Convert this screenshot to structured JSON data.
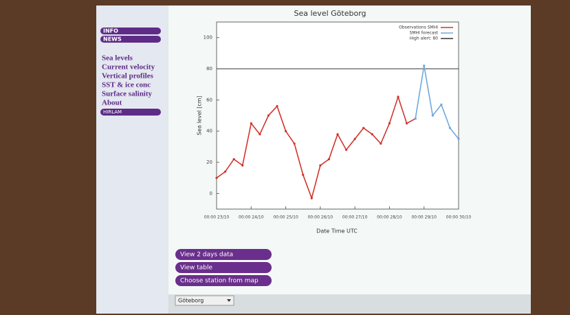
{
  "menu": {
    "small_top": [
      "INFO",
      "NEWS"
    ],
    "items": [
      "Sea levels",
      "Current velocity",
      "Vertical profiles",
      "SST & ice conc",
      "Surface salinity",
      "About"
    ],
    "small_bottom": [
      "HIRLAM"
    ]
  },
  "chart_data": {
    "type": "line",
    "title": "Sea level Göteborg",
    "x_label": "Date Time UTC",
    "y_label": "Sea level [cm]",
    "x": [
      "00:00 23/10",
      null,
      null,
      null,
      "00:00 24/10",
      null,
      null,
      null,
      "00:00 25/10",
      null,
      null,
      null,
      "00:00 26/10",
      null,
      null,
      null,
      "00:00 27/10",
      null,
      null,
      null,
      "00:00 28/10",
      null,
      null,
      null,
      "00:00 29/10",
      null,
      null,
      null,
      "00:00 30/10"
    ],
    "series": [
      {
        "name": "Observations SMHI",
        "color": "#d0342c",
        "values": [
          10,
          14,
          22,
          18,
          45,
          38,
          50,
          56,
          40,
          32,
          12,
          -3,
          18,
          22,
          38,
          28,
          35,
          42,
          38,
          32,
          45,
          62,
          45,
          48,
          null,
          null,
          null,
          null,
          null
        ]
      },
      {
        "name": "SMHI forecast",
        "color": "#6fa8dc",
        "values": [
          null,
          null,
          null,
          null,
          null,
          null,
          null,
          null,
          null,
          null,
          null,
          null,
          null,
          null,
          null,
          null,
          null,
          null,
          null,
          null,
          null,
          null,
          null,
          48,
          82,
          50,
          57,
          42,
          35
        ]
      }
    ],
    "high_alert": {
      "name": "High alert: 80",
      "value": 80,
      "color": "#333333"
    },
    "ylim": [
      -10,
      110
    ],
    "yticks": [
      0,
      20,
      40,
      60,
      80,
      100
    ],
    "grid": false,
    "legend": "upper-right"
  },
  "buttons": [
    "View 2 days data",
    "View table",
    "Choose station from map"
  ],
  "station_select": "Göteborg"
}
